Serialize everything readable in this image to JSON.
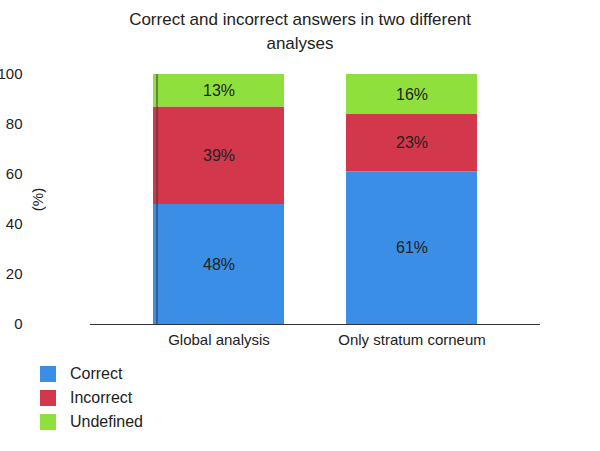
{
  "chart_data": {
    "type": "bar",
    "title": "Correct and incorrect answers in two different analyses",
    "y_label": "(%)",
    "categories": [
      "Global analysis",
      "Only stratum corneum"
    ],
    "series": [
      {
        "name": "Correct",
        "color": "#3a8ee6",
        "values": [
          48,
          61
        ],
        "value_labels": [
          "48%",
          "61%"
        ]
      },
      {
        "name": "Incorrect",
        "color": "#d2374c",
        "values": [
          39,
          23
        ],
        "value_labels": [
          "39%",
          "23%"
        ]
      },
      {
        "name": "Undefined",
        "color": "#8fe03c",
        "values": [
          13,
          16
        ],
        "value_labels": [
          "13%",
          "16%"
        ]
      }
    ],
    "ylim": [
      0,
      100
    ],
    "yticks": [
      0,
      20,
      40,
      60,
      80,
      100
    ],
    "stacked": true,
    "data_labels": true,
    "grid": false,
    "legend": "bottom-left"
  }
}
